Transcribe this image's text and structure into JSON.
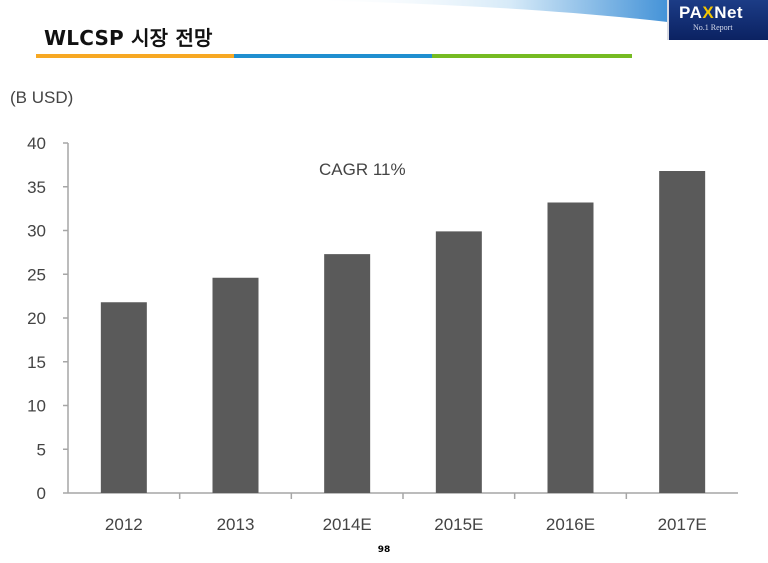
{
  "slide": {
    "title": "WLCSP 시장 전망",
    "page_number": "98",
    "accent_colors": [
      "#f7a823",
      "#1f8fd0",
      "#76bb22"
    ]
  },
  "logo": {
    "brand_pre": "PA",
    "brand_x": "X",
    "brand_post": "Net",
    "subtitle": "No.1 Report"
  },
  "chart_data": {
    "type": "bar",
    "title": "",
    "unit_label": "(B USD)",
    "annotation": "CAGR 11%",
    "xlabel": "",
    "ylabel": "(B USD)",
    "categories": [
      "2012",
      "2013",
      "2014E",
      "2015E",
      "2016E",
      "2017E"
    ],
    "values": [
      21.8,
      24.6,
      27.3,
      29.9,
      33.2,
      36.8
    ],
    "y_ticks": [
      "0",
      "5",
      "10",
      "15",
      "20",
      "25",
      "30",
      "35",
      "40"
    ],
    "ylim": [
      0,
      40
    ],
    "bar_color": "#5a5a5a",
    "axis_color": "#a6a6a6",
    "grid": false,
    "legend": "none"
  }
}
